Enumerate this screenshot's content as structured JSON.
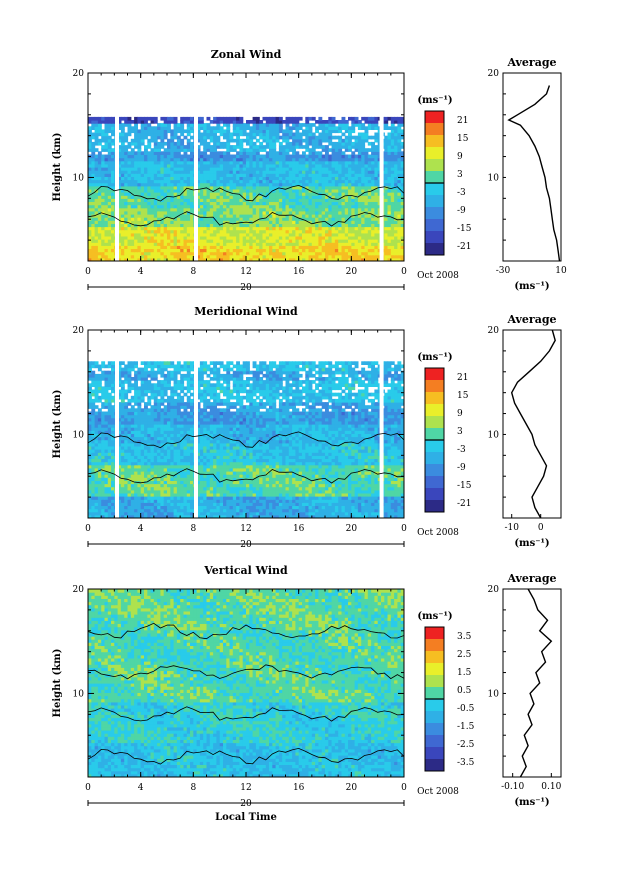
{
  "figure": {
    "date_label": "Oct 2008",
    "day_label": "20",
    "xlabel_bottom": "Local Time",
    "ylabel": "Height (km)",
    "unit_label": "(ms⁻¹)",
    "average_title": "Average"
  },
  "chart_data": [
    {
      "type": "heatmap",
      "title": "Zonal Wind",
      "xlabel": "",
      "ylabel": "Height (km)",
      "xlim": [
        0,
        24
      ],
      "ylim": [
        2,
        20
      ],
      "xticks": [
        "0",
        "4",
        "8",
        "12",
        "16",
        "20",
        "0"
      ],
      "yticks": [
        "10",
        "20"
      ],
      "colorbar": {
        "unit": "(ms⁻¹)",
        "ticks": [
          "21",
          "15",
          "9",
          "3",
          "-3",
          "-9",
          "-15",
          "-21"
        ]
      },
      "gaps_hours": [
        2.2,
        8.2,
        22.3
      ],
      "bands": [
        {
          "from_km": 2.0,
          "to_km": 3.2,
          "value": 12
        },
        {
          "from_km": 3.2,
          "to_km": 5.0,
          "value": 9
        },
        {
          "from_km": 5.0,
          "to_km": 7.0,
          "value": 4
        },
        {
          "from_km": 7.0,
          "to_km": 9.0,
          "value": 2
        },
        {
          "from_km": 9.0,
          "to_km": 11.5,
          "value": -4
        },
        {
          "from_km": 11.5,
          "to_km": 12.5,
          "value": -9
        },
        {
          "from_km": 12.5,
          "to_km": 15.0,
          "value": -6
        },
        {
          "from_km": 15.0,
          "to_km": 15.8,
          "value": -18
        }
      ],
      "average": {
        "xlim": [
          -30,
          10
        ],
        "xticks": [
          "-30",
          "10"
        ],
        "xlabel": "(ms⁻¹)",
        "height_km": [
          2,
          3,
          4,
          5,
          6,
          7,
          8,
          9,
          10,
          11,
          12,
          13,
          14,
          15,
          15.5,
          16,
          17,
          18,
          18.8
        ],
        "speed": [
          9,
          8,
          7,
          5,
          4,
          3,
          2,
          0,
          -1,
          -3,
          -5,
          -8,
          -12,
          -18,
          -26,
          -20,
          -8,
          0,
          2
        ]
      }
    },
    {
      "type": "heatmap",
      "title": "Meridional Wind",
      "xlabel": "",
      "ylabel": "Height (km)",
      "xlim": [
        0,
        24
      ],
      "ylim": [
        2,
        20
      ],
      "xticks": [
        "0",
        "4",
        "8",
        "12",
        "16",
        "20",
        "0"
      ],
      "yticks": [
        "10",
        "20"
      ],
      "colorbar": {
        "unit": "(ms⁻¹)",
        "ticks": [
          "21",
          "15",
          "9",
          "3",
          "-3",
          "-9",
          "-15",
          "-21"
        ]
      },
      "gaps_hours": [
        2.2,
        8.2,
        22.3
      ],
      "bands": [
        {
          "from_km": 2.0,
          "to_km": 4.0,
          "value": -6
        },
        {
          "from_km": 4.0,
          "to_km": 7.0,
          "value": 2
        },
        {
          "from_km": 7.0,
          "to_km": 9.0,
          "value": -3
        },
        {
          "from_km": 9.0,
          "to_km": 11.0,
          "value": -5
        },
        {
          "from_km": 11.0,
          "to_km": 13.0,
          "value": -8
        },
        {
          "from_km": 13.0,
          "to_km": 15.0,
          "value": -4
        },
        {
          "from_km": 15.0,
          "to_km": 16.0,
          "value": -7
        },
        {
          "from_km": 16.0,
          "to_km": 17.0,
          "value": -4
        }
      ],
      "average": {
        "xlim": [
          -13,
          7
        ],
        "xticks": [
          "-10",
          "0"
        ],
        "xlabel": "(ms⁻¹)",
        "height_km": [
          2,
          3,
          4,
          5,
          6,
          7,
          8,
          9,
          10,
          11,
          12,
          13,
          14,
          15,
          16,
          17,
          18,
          19,
          20
        ],
        "speed": [
          0,
          -2,
          -3,
          -1,
          1,
          2,
          0,
          -2,
          -3,
          -5,
          -7,
          -9,
          -10,
          -8,
          -4,
          0,
          3,
          5,
          4
        ]
      }
    },
    {
      "type": "heatmap",
      "title": "Vertical Wind",
      "xlabel": "Local Time",
      "ylabel": "Height (km)",
      "xlim": [
        0,
        24
      ],
      "ylim": [
        2,
        20
      ],
      "xticks": [
        "0",
        "4",
        "8",
        "12",
        "16",
        "20",
        "0"
      ],
      "yticks": [
        "10",
        "20"
      ],
      "colorbar": {
        "unit": "(ms⁻¹)",
        "ticks": [
          "3.5",
          "2.5",
          "1.5",
          "0.5",
          "-0.5",
          "-1.5",
          "-2.5",
          "-3.5"
        ]
      },
      "gaps_hours": [],
      "bands": [
        {
          "from_km": 2.0,
          "to_km": 5.0,
          "value": -0.6
        },
        {
          "from_km": 5.0,
          "to_km": 9.0,
          "value": -0.2
        },
        {
          "from_km": 9.0,
          "to_km": 13.0,
          "value": 0.3
        },
        {
          "from_km": 13.0,
          "to_km": 16.0,
          "value": 0.2
        },
        {
          "from_km": 16.0,
          "to_km": 20.0,
          "value": 0.4
        }
      ],
      "average": {
        "xlim": [
          -0.15,
          0.15
        ],
        "xticks": [
          "-0.10",
          "0.10"
        ],
        "xlabel": "(ms⁻¹)",
        "height_km": [
          2,
          3,
          4,
          5,
          6,
          7,
          8,
          9,
          10,
          11,
          12,
          13,
          14,
          15,
          16,
          17,
          18,
          19,
          20
        ],
        "speed": [
          -0.06,
          -0.03,
          -0.05,
          -0.02,
          -0.04,
          0.0,
          -0.02,
          0.01,
          -0.01,
          0.04,
          0.02,
          0.07,
          0.05,
          0.1,
          0.04,
          0.08,
          0.03,
          0.01,
          -0.02
        ]
      }
    }
  ]
}
